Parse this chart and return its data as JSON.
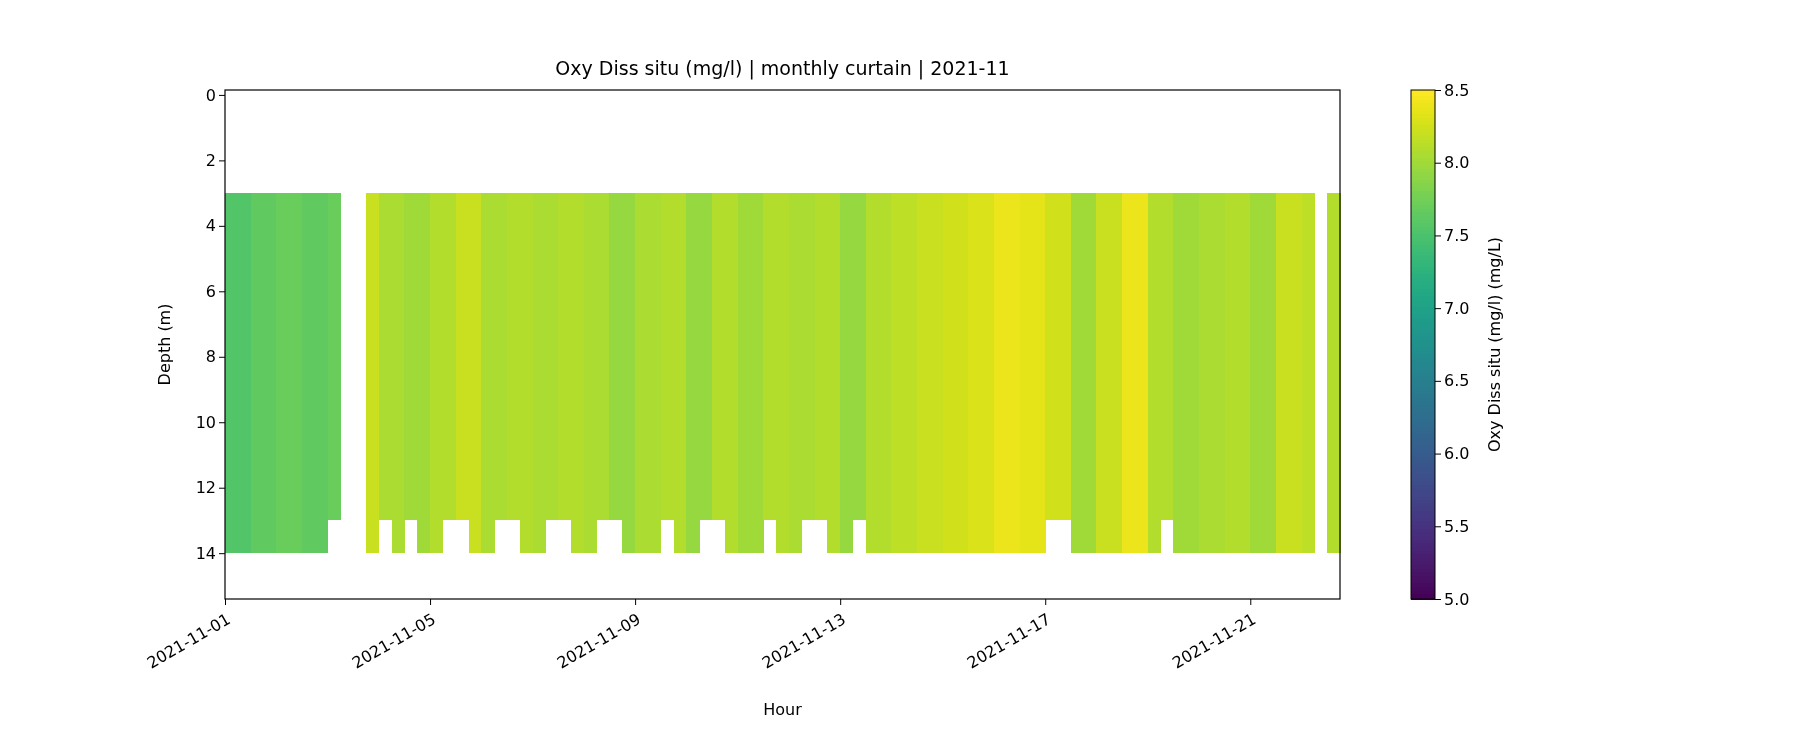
{
  "chart_data": {
    "type": "heatmap",
    "title": "Oxy Diss situ (mg/l) | monthly curtain | 2021-11",
    "xlabel": "Hour",
    "ylabel": "Depth (m)",
    "clabel": "Oxy Diss situ (mg/l) (mg/L)",
    "x": [
      "2021-11-01T03:00",
      "2021-11-01T09:00",
      "2021-11-01T15:00",
      "2021-11-01T21:00",
      "2021-11-02T03:00",
      "2021-11-02T09:00",
      "2021-11-02T15:00",
      "2021-11-02T21:00",
      "2021-11-03T03:00",
      "2021-11-03T09:00",
      "2021-11-03T15:00",
      "2021-11-03T21:00",
      "2021-11-04T03:00",
      "2021-11-04T09:00",
      "2021-11-04T15:00",
      "2021-11-04T21:00",
      "2021-11-05T03:00",
      "2021-11-05T09:00",
      "2021-11-05T15:00",
      "2021-11-05T21:00",
      "2021-11-06T03:00",
      "2021-11-06T09:00",
      "2021-11-06T15:00",
      "2021-11-06T21:00",
      "2021-11-07T03:00",
      "2021-11-07T09:00",
      "2021-11-07T15:00",
      "2021-11-07T21:00",
      "2021-11-08T03:00",
      "2021-11-08T09:00",
      "2021-11-08T15:00",
      "2021-11-08T21:00",
      "2021-11-09T03:00",
      "2021-11-09T09:00",
      "2021-11-09T15:00",
      "2021-11-09T21:00",
      "2021-11-10T03:00",
      "2021-11-10T09:00",
      "2021-11-10T15:00",
      "2021-11-10T21:00",
      "2021-11-11T03:00",
      "2021-11-11T09:00",
      "2021-11-11T15:00",
      "2021-11-11T21:00",
      "2021-11-12T03:00",
      "2021-11-12T09:00",
      "2021-11-12T15:00",
      "2021-11-12T21:00",
      "2021-11-13T03:00",
      "2021-11-13T09:00",
      "2021-11-13T15:00",
      "2021-11-13T21:00",
      "2021-11-14T03:00",
      "2021-11-14T09:00",
      "2021-11-14T15:00",
      "2021-11-14T21:00",
      "2021-11-15T03:00",
      "2021-11-15T09:00",
      "2021-11-15T15:00",
      "2021-11-15T21:00",
      "2021-11-16T03:00",
      "2021-11-16T09:00",
      "2021-11-16T15:00",
      "2021-11-16T21:00",
      "2021-11-17T03:00",
      "2021-11-17T09:00",
      "2021-11-17T15:00",
      "2021-11-17T21:00",
      "2021-11-18T03:00",
      "2021-11-18T09:00",
      "2021-11-18T15:00",
      "2021-11-18T21:00",
      "2021-11-19T03:00",
      "2021-11-19T09:00",
      "2021-11-19T15:00",
      "2021-11-19T21:00",
      "2021-11-20T03:00",
      "2021-11-20T09:00",
      "2021-11-20T15:00",
      "2021-11-20T21:00",
      "2021-11-21T03:00",
      "2021-11-21T09:00",
      "2021-11-21T15:00",
      "2021-11-21T21:00",
      "2021-11-22T03:00",
      "2021-11-22T09:00",
      "2021-11-22T15:00"
    ],
    "y": [
      3.5,
      4.5,
      5.5,
      6.5,
      7.5,
      8.5,
      9.5,
      10.5,
      11.5,
      12.5,
      13.5
    ],
    "cells": [
      [
        7.55,
        7.55,
        7.65,
        7.65,
        7.7,
        7.7,
        7.65,
        7.65,
        7.7,
        null,
        null,
        8.2,
        8.05,
        8.05,
        8.0,
        8.0,
        8.1,
        8.1,
        8.2,
        8.2,
        8.05,
        8.05,
        8.1,
        8.1,
        8.05,
        8.05,
        8.1,
        8.1,
        8.05,
        8.05,
        7.95,
        7.95,
        8.05,
        8.05,
        8.1,
        8.1,
        7.95,
        7.95,
        8.1,
        8.1,
        8.0,
        8.0,
        8.1,
        8.1,
        8.05,
        8.05,
        8.1,
        8.1,
        7.95,
        7.95,
        8.1,
        8.1,
        8.15,
        8.15,
        8.2,
        8.2,
        8.25,
        8.25,
        8.3,
        8.3,
        8.4,
        8.4,
        8.35,
        8.35,
        8.25,
        8.25,
        8.0,
        8.0,
        8.2,
        8.2,
        8.4,
        8.4,
        8.1,
        8.1,
        8.0,
        8.0,
        8.05,
        8.05,
        8.1,
        8.1,
        8.0,
        8.0,
        8.2,
        8.2,
        8.15,
        null,
        8.1
      ],
      [
        7.55,
        7.55,
        7.65,
        7.65,
        7.7,
        7.7,
        7.65,
        7.65,
        7.7,
        null,
        null,
        8.2,
        8.05,
        8.05,
        8.0,
        8.0,
        8.1,
        8.1,
        8.2,
        8.2,
        8.05,
        8.05,
        8.1,
        8.1,
        8.05,
        8.05,
        8.1,
        8.1,
        8.05,
        8.05,
        7.95,
        7.95,
        8.05,
        8.05,
        8.1,
        8.1,
        7.95,
        7.95,
        8.1,
        8.1,
        8.0,
        8.0,
        8.1,
        8.1,
        8.05,
        8.05,
        8.1,
        8.1,
        7.95,
        7.95,
        8.1,
        8.1,
        8.15,
        8.15,
        8.2,
        8.2,
        8.25,
        8.25,
        8.3,
        8.3,
        8.4,
        8.4,
        8.35,
        8.35,
        8.25,
        8.25,
        8.0,
        8.0,
        8.2,
        8.2,
        8.4,
        8.4,
        8.1,
        8.1,
        8.0,
        8.0,
        8.05,
        8.05,
        8.1,
        8.1,
        8.0,
        8.0,
        8.2,
        8.2,
        8.15,
        null,
        8.1
      ],
      [
        7.55,
        7.55,
        7.65,
        7.65,
        7.7,
        7.7,
        7.65,
        7.65,
        7.7,
        null,
        null,
        8.2,
        8.05,
        8.05,
        8.0,
        8.0,
        8.1,
        8.1,
        8.2,
        8.2,
        8.05,
        8.05,
        8.1,
        8.1,
        8.05,
        8.05,
        8.1,
        8.1,
        8.05,
        8.05,
        7.95,
        7.95,
        8.05,
        8.05,
        8.1,
        8.1,
        7.95,
        7.95,
        8.1,
        8.1,
        8.0,
        8.0,
        8.1,
        8.1,
        8.05,
        8.05,
        8.1,
        8.1,
        7.95,
        7.95,
        8.1,
        8.1,
        8.15,
        8.15,
        8.2,
        8.2,
        8.25,
        8.25,
        8.3,
        8.3,
        8.4,
        8.4,
        8.35,
        8.35,
        8.25,
        8.25,
        8.0,
        8.0,
        8.2,
        8.2,
        8.4,
        8.4,
        8.1,
        8.1,
        8.0,
        8.0,
        8.05,
        8.05,
        8.1,
        8.1,
        8.0,
        8.0,
        8.2,
        8.2,
        8.15,
        null,
        8.1
      ],
      [
        7.55,
        7.55,
        7.65,
        7.65,
        7.7,
        7.7,
        7.65,
        7.65,
        7.7,
        null,
        null,
        8.2,
        8.05,
        8.05,
        8.0,
        8.0,
        8.1,
        8.1,
        8.2,
        8.2,
        8.05,
        8.05,
        8.1,
        8.1,
        8.05,
        8.05,
        8.1,
        8.1,
        8.05,
        8.05,
        7.95,
        7.95,
        8.05,
        8.05,
        8.1,
        8.1,
        7.95,
        7.95,
        8.1,
        8.1,
        8.0,
        8.0,
        8.1,
        8.1,
        8.05,
        8.05,
        8.1,
        8.1,
        7.95,
        7.95,
        8.1,
        8.1,
        8.15,
        8.15,
        8.2,
        8.2,
        8.25,
        8.25,
        8.3,
        8.3,
        8.4,
        8.4,
        8.35,
        8.35,
        8.25,
        8.25,
        8.0,
        8.0,
        8.2,
        8.2,
        8.4,
        8.4,
        8.1,
        8.1,
        8.0,
        8.0,
        8.05,
        8.05,
        8.1,
        8.1,
        8.0,
        8.0,
        8.2,
        8.2,
        8.15,
        null,
        8.1
      ],
      [
        7.55,
        7.55,
        7.65,
        7.65,
        7.7,
        7.7,
        7.65,
        7.65,
        7.7,
        null,
        null,
        8.2,
        8.05,
        8.05,
        8.0,
        8.0,
        8.1,
        8.1,
        8.2,
        8.2,
        8.05,
        8.05,
        8.1,
        8.1,
        8.05,
        8.05,
        8.1,
        8.1,
        8.05,
        8.05,
        7.95,
        7.95,
        8.05,
        8.05,
        8.1,
        8.1,
        7.95,
        7.95,
        8.1,
        8.1,
        8.0,
        8.0,
        8.1,
        8.1,
        8.05,
        8.05,
        8.1,
        8.1,
        7.95,
        7.95,
        8.1,
        8.1,
        8.15,
        8.15,
        8.2,
        8.2,
        8.25,
        8.25,
        8.3,
        8.3,
        8.4,
        8.4,
        8.35,
        8.35,
        8.25,
        8.25,
        8.0,
        8.0,
        8.2,
        8.2,
        8.4,
        8.4,
        8.1,
        8.1,
        8.0,
        8.0,
        8.05,
        8.05,
        8.1,
        8.1,
        8.0,
        8.0,
        8.2,
        8.2,
        8.15,
        null,
        8.1
      ],
      [
        7.55,
        7.55,
        7.65,
        7.65,
        7.7,
        7.7,
        7.65,
        7.65,
        7.7,
        null,
        null,
        8.2,
        8.05,
        8.05,
        8.0,
        8.0,
        8.1,
        8.1,
        8.2,
        8.2,
        8.05,
        8.05,
        8.1,
        8.1,
        8.05,
        8.05,
        8.1,
        8.1,
        8.05,
        8.05,
        7.95,
        7.95,
        8.05,
        8.05,
        8.1,
        8.1,
        7.95,
        7.95,
        8.1,
        8.1,
        8.0,
        8.0,
        8.1,
        8.1,
        8.05,
        8.05,
        8.1,
        8.1,
        7.95,
        7.95,
        8.1,
        8.1,
        8.15,
        8.15,
        8.2,
        8.2,
        8.25,
        8.25,
        8.3,
        8.3,
        8.4,
        8.4,
        8.35,
        8.35,
        8.25,
        8.25,
        8.0,
        8.0,
        8.2,
        8.2,
        8.4,
        8.4,
        8.1,
        8.1,
        8.0,
        8.0,
        8.05,
        8.05,
        8.1,
        8.1,
        8.0,
        8.0,
        8.2,
        8.2,
        8.15,
        null,
        8.1
      ],
      [
        7.55,
        7.55,
        7.65,
        7.65,
        7.7,
        7.7,
        7.65,
        7.65,
        7.7,
        null,
        null,
        8.2,
        8.05,
        8.05,
        8.0,
        8.0,
        8.1,
        8.1,
        8.2,
        8.2,
        8.05,
        8.05,
        8.1,
        8.1,
        8.05,
        8.05,
        8.1,
        8.1,
        8.05,
        8.05,
        7.95,
        7.95,
        8.05,
        8.05,
        8.1,
        8.1,
        7.95,
        7.95,
        8.1,
        8.1,
        8.0,
        8.0,
        8.1,
        8.1,
        8.05,
        8.05,
        8.1,
        8.1,
        7.95,
        7.95,
        8.1,
        8.1,
        8.15,
        8.15,
        8.2,
        8.2,
        8.25,
        8.25,
        8.3,
        8.3,
        8.4,
        8.4,
        8.35,
        8.35,
        8.25,
        8.25,
        8.0,
        8.0,
        8.2,
        8.2,
        8.4,
        8.4,
        8.1,
        8.1,
        8.0,
        8.0,
        8.05,
        8.05,
        8.1,
        8.1,
        8.0,
        8.0,
        8.2,
        8.2,
        8.15,
        null,
        8.1
      ],
      [
        7.55,
        7.55,
        7.65,
        7.65,
        7.7,
        7.7,
        7.65,
        7.65,
        7.7,
        null,
        null,
        8.2,
        8.05,
        8.05,
        8.0,
        8.0,
        8.1,
        8.1,
        8.2,
        8.2,
        8.05,
        8.05,
        8.1,
        8.1,
        8.05,
        8.05,
        8.1,
        8.1,
        8.05,
        8.05,
        7.95,
        7.95,
        8.05,
        8.05,
        8.1,
        8.1,
        7.95,
        7.95,
        8.1,
        8.1,
        8.0,
        8.0,
        8.1,
        8.1,
        8.05,
        8.05,
        8.1,
        8.1,
        7.95,
        7.95,
        8.1,
        8.1,
        8.15,
        8.15,
        8.2,
        8.2,
        8.25,
        8.25,
        8.3,
        8.3,
        8.4,
        8.4,
        8.35,
        8.35,
        8.25,
        8.25,
        8.0,
        8.0,
        8.2,
        8.2,
        8.4,
        8.4,
        8.1,
        8.1,
        8.0,
        8.0,
        8.05,
        8.05,
        8.1,
        8.1,
        8.0,
        8.0,
        8.2,
        8.2,
        8.15,
        null,
        8.1
      ],
      [
        7.55,
        7.55,
        7.65,
        7.65,
        7.7,
        7.7,
        7.65,
        7.65,
        7.7,
        null,
        null,
        8.2,
        8.05,
        8.05,
        8.0,
        8.0,
        8.1,
        8.1,
        8.2,
        8.2,
        8.05,
        8.05,
        8.1,
        8.1,
        8.05,
        8.05,
        8.1,
        8.1,
        8.05,
        8.05,
        7.95,
        7.95,
        8.05,
        8.05,
        8.1,
        8.1,
        7.95,
        7.95,
        8.1,
        8.1,
        8.0,
        8.0,
        8.1,
        8.1,
        8.05,
        8.05,
        8.1,
        8.1,
        7.95,
        7.95,
        8.1,
        8.1,
        8.15,
        8.15,
        8.2,
        8.2,
        8.25,
        8.25,
        8.3,
        8.3,
        8.4,
        8.4,
        8.35,
        8.35,
        8.25,
        8.25,
        8.0,
        8.0,
        8.2,
        8.2,
        8.4,
        8.4,
        8.1,
        8.1,
        8.0,
        8.0,
        8.05,
        8.05,
        8.1,
        8.1,
        8.0,
        8.0,
        8.2,
        8.2,
        8.15,
        null,
        8.1
      ],
      [
        7.55,
        7.55,
        7.65,
        7.65,
        7.7,
        7.7,
        7.65,
        7.65,
        7.7,
        null,
        null,
        8.2,
        8.05,
        8.05,
        8.0,
        8.0,
        8.1,
        8.1,
        8.2,
        8.2,
        8.05,
        8.05,
        8.1,
        8.1,
        8.05,
        8.05,
        8.1,
        8.1,
        8.05,
        8.05,
        7.95,
        7.95,
        8.05,
        8.05,
        8.1,
        8.1,
        7.95,
        7.95,
        8.1,
        8.1,
        8.0,
        8.0,
        8.1,
        8.1,
        8.05,
        8.05,
        8.1,
        8.1,
        7.95,
        7.95,
        8.1,
        8.1,
        8.15,
        8.15,
        8.2,
        8.2,
        8.25,
        8.25,
        8.3,
        8.3,
        8.4,
        8.4,
        8.35,
        8.35,
        8.25,
        8.25,
        8.0,
        8.0,
        8.2,
        8.2,
        8.4,
        8.4,
        8.1,
        8.1,
        8.0,
        8.0,
        8.05,
        8.05,
        8.1,
        8.1,
        8.0,
        8.0,
        8.2,
        8.2,
        8.15,
        null,
        8.1
      ],
      [
        7.55,
        7.55,
        7.65,
        7.65,
        7.7,
        7.7,
        7.65,
        7.65,
        null,
        null,
        null,
        8.2,
        null,
        8.05,
        null,
        8.0,
        8.1,
        null,
        null,
        8.2,
        8.05,
        null,
        null,
        8.1,
        8.05,
        null,
        null,
        8.1,
        8.05,
        null,
        null,
        7.95,
        8.05,
        8.05,
        null,
        8.1,
        7.95,
        null,
        null,
        8.1,
        8.0,
        8.0,
        null,
        8.1,
        8.05,
        null,
        null,
        8.1,
        7.95,
        null,
        8.1,
        8.1,
        8.15,
        8.15,
        8.2,
        8.2,
        8.25,
        8.25,
        8.3,
        8.3,
        8.4,
        8.4,
        8.35,
        8.35,
        null,
        null,
        8.0,
        8.0,
        8.2,
        8.2,
        8.4,
        8.4,
        8.1,
        null,
        8.0,
        8.0,
        8.05,
        8.05,
        8.1,
        8.1,
        8.0,
        8.0,
        8.2,
        8.2,
        8.15,
        null,
        8.1
      ]
    ],
    "xlim": [
      "2021-11-01T00:00",
      "2021-11-22T18:00"
    ],
    "xticks": [
      "2021-11-01",
      "2021-11-05",
      "2021-11-09",
      "2021-11-13",
      "2021-11-17",
      "2021-11-21"
    ],
    "ylim": [
      15.4,
      -0.15
    ],
    "yticks": [
      0,
      2,
      4,
      6,
      8,
      10,
      12,
      14
    ],
    "clim": [
      5,
      8.5
    ],
    "cticks": [
      {
        "value": 5,
        "label": "5.0"
      },
      {
        "value": 5.5,
        "label": "5.5"
      },
      {
        "value": 6,
        "label": "6.0"
      },
      {
        "value": 6.5,
        "label": "6.5"
      },
      {
        "value": 7,
        "label": "7.0"
      },
      {
        "value": 7.5,
        "label": "7.5"
      },
      {
        "value": 8,
        "label": "8.0"
      },
      {
        "value": 8.5,
        "label": "8.5"
      }
    ]
  }
}
